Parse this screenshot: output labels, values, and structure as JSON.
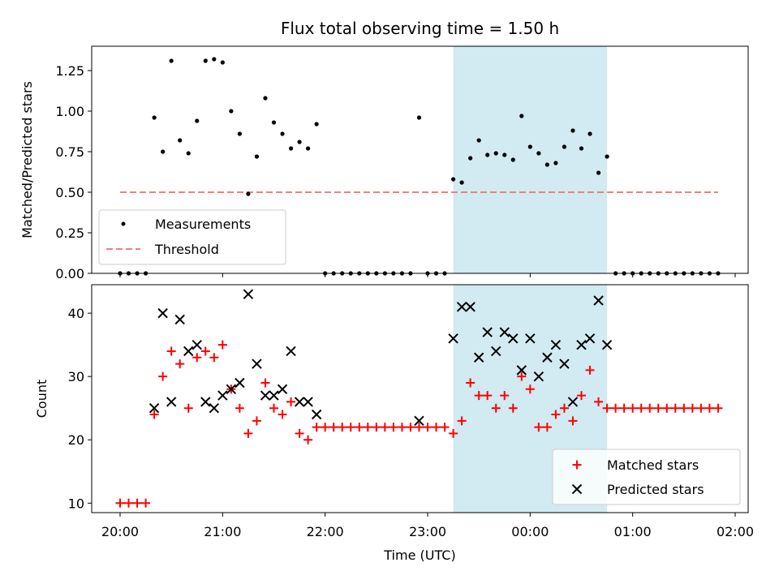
{
  "chart_data": [
    {
      "type": "scatter",
      "title": "Flux total observing time = 1.50 h",
      "ylabel": "Matched/Predicted stars",
      "xlabel": "",
      "ylim": [
        0,
        1.4
      ],
      "yticks": [
        "0.00",
        "0.25",
        "0.50",
        "0.75",
        "1.00",
        "1.25"
      ],
      "grid": false,
      "legend_position": "lower-left",
      "shaded_interval": [
        "23:15",
        "00:45"
      ],
      "shade_color": "#add8e6",
      "series": [
        {
          "name": "Measurements",
          "kind": "scatter",
          "color": "#000000",
          "points": [
            [
              "20:00",
              0.0
            ],
            [
              "20:05",
              0.0
            ],
            [
              "20:10",
              0.0
            ],
            [
              "20:15",
              0.0
            ],
            [
              "20:20",
              0.96
            ],
            [
              "20:25",
              0.75
            ],
            [
              "20:30",
              1.31
            ],
            [
              "20:35",
              0.82
            ],
            [
              "20:40",
              0.74
            ],
            [
              "20:45",
              0.94
            ],
            [
              "20:50",
              1.31
            ],
            [
              "20:55",
              1.32
            ],
            [
              "21:00",
              1.3
            ],
            [
              "21:05",
              1.0
            ],
            [
              "21:10",
              0.86
            ],
            [
              "21:15",
              0.49
            ],
            [
              "21:20",
              0.72
            ],
            [
              "21:25",
              1.08
            ],
            [
              "21:30",
              0.93
            ],
            [
              "21:35",
              0.86
            ],
            [
              "21:40",
              0.77
            ],
            [
              "21:45",
              0.81
            ],
            [
              "21:50",
              0.77
            ],
            [
              "21:55",
              0.92
            ],
            [
              "22:00",
              0.0
            ],
            [
              "22:05",
              0.0
            ],
            [
              "22:10",
              0.0
            ],
            [
              "22:15",
              0.0
            ],
            [
              "22:20",
              0.0
            ],
            [
              "22:25",
              0.0
            ],
            [
              "22:30",
              0.0
            ],
            [
              "22:35",
              0.0
            ],
            [
              "22:40",
              0.0
            ],
            [
              "22:45",
              0.0
            ],
            [
              "22:50",
              0.0
            ],
            [
              "22:55",
              0.96
            ],
            [
              "23:00",
              0.0
            ],
            [
              "23:05",
              0.0
            ],
            [
              "23:10",
              0.0
            ],
            [
              "23:15",
              0.58
            ],
            [
              "23:20",
              0.56
            ],
            [
              "23:25",
              0.71
            ],
            [
              "23:30",
              0.82
            ],
            [
              "23:35",
              0.73
            ],
            [
              "23:40",
              0.74
            ],
            [
              "23:45",
              0.73
            ],
            [
              "23:50",
              0.7
            ],
            [
              "23:55",
              0.97
            ],
            [
              "00:00",
              0.78
            ],
            [
              "00:05",
              0.74
            ],
            [
              "00:10",
              0.67
            ],
            [
              "00:15",
              0.68
            ],
            [
              "00:20",
              0.78
            ],
            [
              "00:25",
              0.88
            ],
            [
              "00:30",
              0.77
            ],
            [
              "00:35",
              0.86
            ],
            [
              "00:40",
              0.62
            ],
            [
              "00:45",
              0.72
            ],
            [
              "00:50",
              0.0
            ],
            [
              "00:55",
              0.0
            ],
            [
              "01:00",
              0.0
            ],
            [
              "01:05",
              0.0
            ],
            [
              "01:10",
              0.0
            ],
            [
              "01:15",
              0.0
            ],
            [
              "01:20",
              0.0
            ],
            [
              "01:25",
              0.0
            ],
            [
              "01:30",
              0.0
            ],
            [
              "01:35",
              0.0
            ],
            [
              "01:40",
              0.0
            ],
            [
              "01:45",
              0.0
            ],
            [
              "01:50",
              0.0
            ]
          ]
        },
        {
          "name": "Threshold",
          "kind": "dashed-line",
          "color": "#f08080",
          "points": [
            [
              "20:00",
              0.5
            ],
            [
              "01:50",
              0.5
            ]
          ]
        }
      ]
    },
    {
      "type": "scatter",
      "title": "",
      "ylabel": "Count",
      "xlabel": "Time (UTC)",
      "ylim": [
        8.5,
        44.5
      ],
      "yticks": [
        "10",
        "20",
        "30",
        "40"
      ],
      "xticks": [
        "20:00",
        "21:00",
        "22:00",
        "23:00",
        "00:00",
        "01:00",
        "02:00"
      ],
      "grid": false,
      "legend_position": "lower-right",
      "shaded_interval": [
        "23:15",
        "00:45"
      ],
      "shade_color": "#add8e6",
      "series": [
        {
          "name": "Matched stars",
          "kind": "plus",
          "color": "#ff0000",
          "points": [
            [
              "20:00",
              10
            ],
            [
              "20:05",
              10
            ],
            [
              "20:10",
              10
            ],
            [
              "20:15",
              10
            ],
            [
              "20:20",
              24
            ],
            [
              "20:25",
              30
            ],
            [
              "20:30",
              34
            ],
            [
              "20:35",
              32
            ],
            [
              "20:40",
              25
            ],
            [
              "20:45",
              33
            ],
            [
              "20:50",
              34
            ],
            [
              "20:55",
              33
            ],
            [
              "21:00",
              35
            ],
            [
              "21:05",
              28
            ],
            [
              "21:10",
              25
            ],
            [
              "21:15",
              21
            ],
            [
              "21:20",
              23
            ],
            [
              "21:25",
              29
            ],
            [
              "21:30",
              25
            ],
            [
              "21:35",
              24
            ],
            [
              "21:40",
              26
            ],
            [
              "21:45",
              21
            ],
            [
              "21:50",
              20
            ],
            [
              "21:55",
              22
            ],
            [
              "22:00",
              22
            ],
            [
              "22:05",
              22
            ],
            [
              "22:10",
              22
            ],
            [
              "22:15",
              22
            ],
            [
              "22:20",
              22
            ],
            [
              "22:25",
              22
            ],
            [
              "22:30",
              22
            ],
            [
              "22:35",
              22
            ],
            [
              "22:40",
              22
            ],
            [
              "22:45",
              22
            ],
            [
              "22:50",
              22
            ],
            [
              "22:55",
              22
            ],
            [
              "23:00",
              22
            ],
            [
              "23:05",
              22
            ],
            [
              "23:10",
              22
            ],
            [
              "23:15",
              21
            ],
            [
              "23:20",
              23
            ],
            [
              "23:25",
              29
            ],
            [
              "23:30",
              27
            ],
            [
              "23:35",
              27
            ],
            [
              "23:40",
              25
            ],
            [
              "23:45",
              27
            ],
            [
              "23:50",
              25
            ],
            [
              "23:55",
              30
            ],
            [
              "00:00",
              28
            ],
            [
              "00:05",
              22
            ],
            [
              "00:10",
              22
            ],
            [
              "00:15",
              24
            ],
            [
              "00:20",
              25
            ],
            [
              "00:25",
              23
            ],
            [
              "00:30",
              27
            ],
            [
              "00:35",
              31
            ],
            [
              "00:40",
              26
            ],
            [
              "00:45",
              25
            ],
            [
              "00:50",
              25
            ],
            [
              "00:55",
              25
            ],
            [
              "01:00",
              25
            ],
            [
              "01:05",
              25
            ],
            [
              "01:10",
              25
            ],
            [
              "01:15",
              25
            ],
            [
              "01:20",
              25
            ],
            [
              "01:25",
              25
            ],
            [
              "01:30",
              25
            ],
            [
              "01:35",
              25
            ],
            [
              "01:40",
              25
            ],
            [
              "01:45",
              25
            ],
            [
              "01:50",
              25
            ]
          ]
        },
        {
          "name": "Predicted stars",
          "kind": "x",
          "color": "#000000",
          "points": [
            [
              "20:20",
              25
            ],
            [
              "20:25",
              40
            ],
            [
              "20:30",
              26
            ],
            [
              "20:35",
              39
            ],
            [
              "20:40",
              34
            ],
            [
              "20:45",
              35
            ],
            [
              "20:50",
              26
            ],
            [
              "20:55",
              25
            ],
            [
              "21:00",
              27
            ],
            [
              "21:05",
              28
            ],
            [
              "21:10",
              29
            ],
            [
              "21:15",
              43
            ],
            [
              "21:20",
              32
            ],
            [
              "21:25",
              27
            ],
            [
              "21:30",
              27
            ],
            [
              "21:35",
              28
            ],
            [
              "21:40",
              34
            ],
            [
              "21:45",
              26
            ],
            [
              "21:50",
              26
            ],
            [
              "21:55",
              24
            ],
            [
              "22:55",
              23
            ],
            [
              "23:15",
              36
            ],
            [
              "23:20",
              41
            ],
            [
              "23:25",
              41
            ],
            [
              "23:30",
              33
            ],
            [
              "23:35",
              37
            ],
            [
              "23:40",
              34
            ],
            [
              "23:45",
              37
            ],
            [
              "23:50",
              36
            ],
            [
              "23:55",
              31
            ],
            [
              "00:00",
              36
            ],
            [
              "00:05",
              30
            ],
            [
              "00:10",
              33
            ],
            [
              "00:15",
              35
            ],
            [
              "00:20",
              32
            ],
            [
              "00:25",
              26
            ],
            [
              "00:30",
              35
            ],
            [
              "00:35",
              36
            ],
            [
              "00:40",
              42
            ],
            [
              "00:45",
              35
            ]
          ]
        }
      ]
    }
  ]
}
